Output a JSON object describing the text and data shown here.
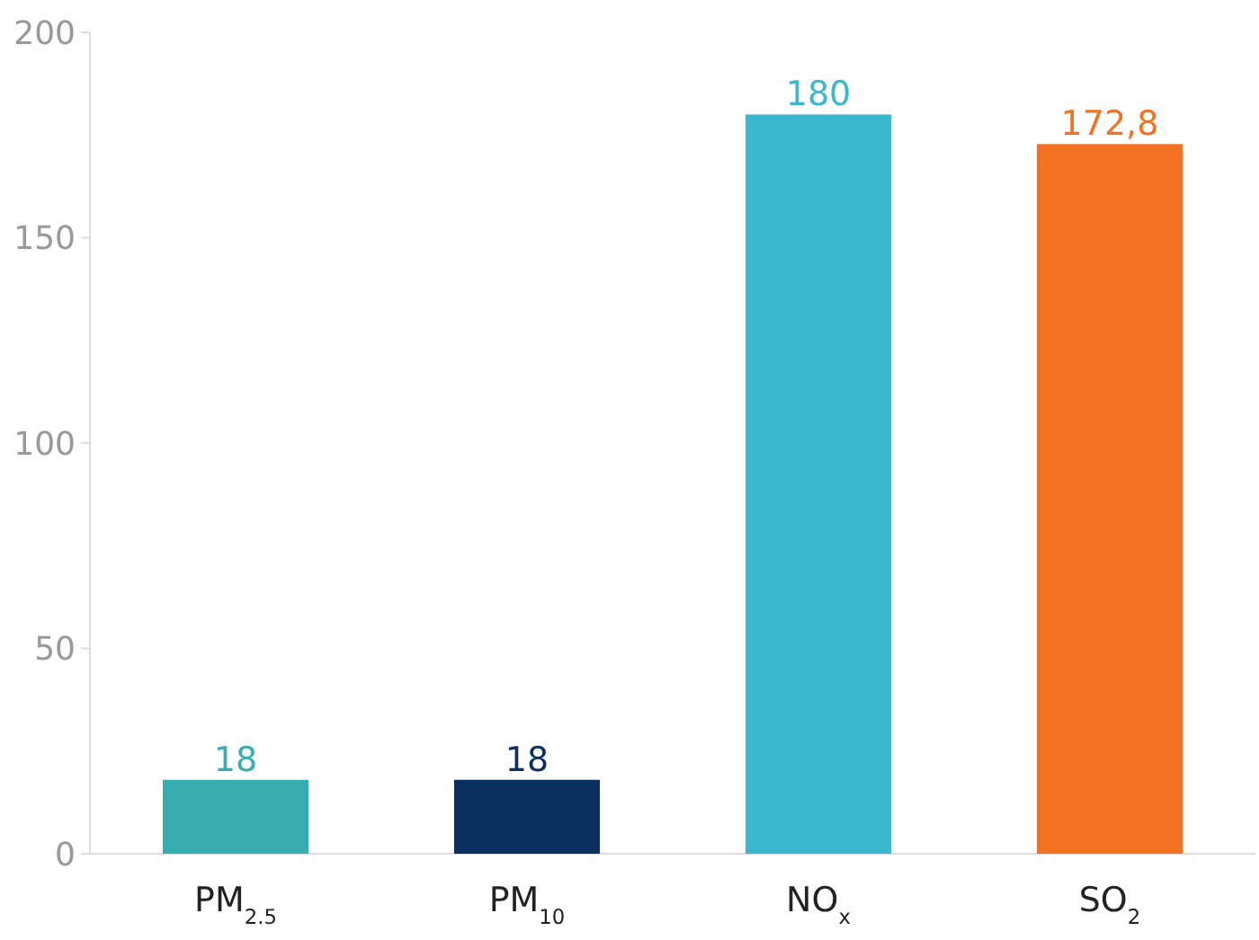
{
  "chart_data": {
    "type": "bar",
    "categories": [
      "PM$_{2.5}$",
      "PM$_{10}$",
      "NO$_{x}$",
      "SO$_{2}$"
    ],
    "values": [
      18,
      18,
      180,
      172.8
    ],
    "colors": [
      "#38adb0",
      "#0b2f5e",
      "#3bb8cf",
      "#f37121"
    ],
    "value_labels": [
      "18",
      "18",
      "180",
      "172,8"
    ],
    "ylim": [
      0,
      200
    ],
    "yticks": [
      0,
      50,
      100,
      150,
      200
    ],
    "grid": false
  }
}
